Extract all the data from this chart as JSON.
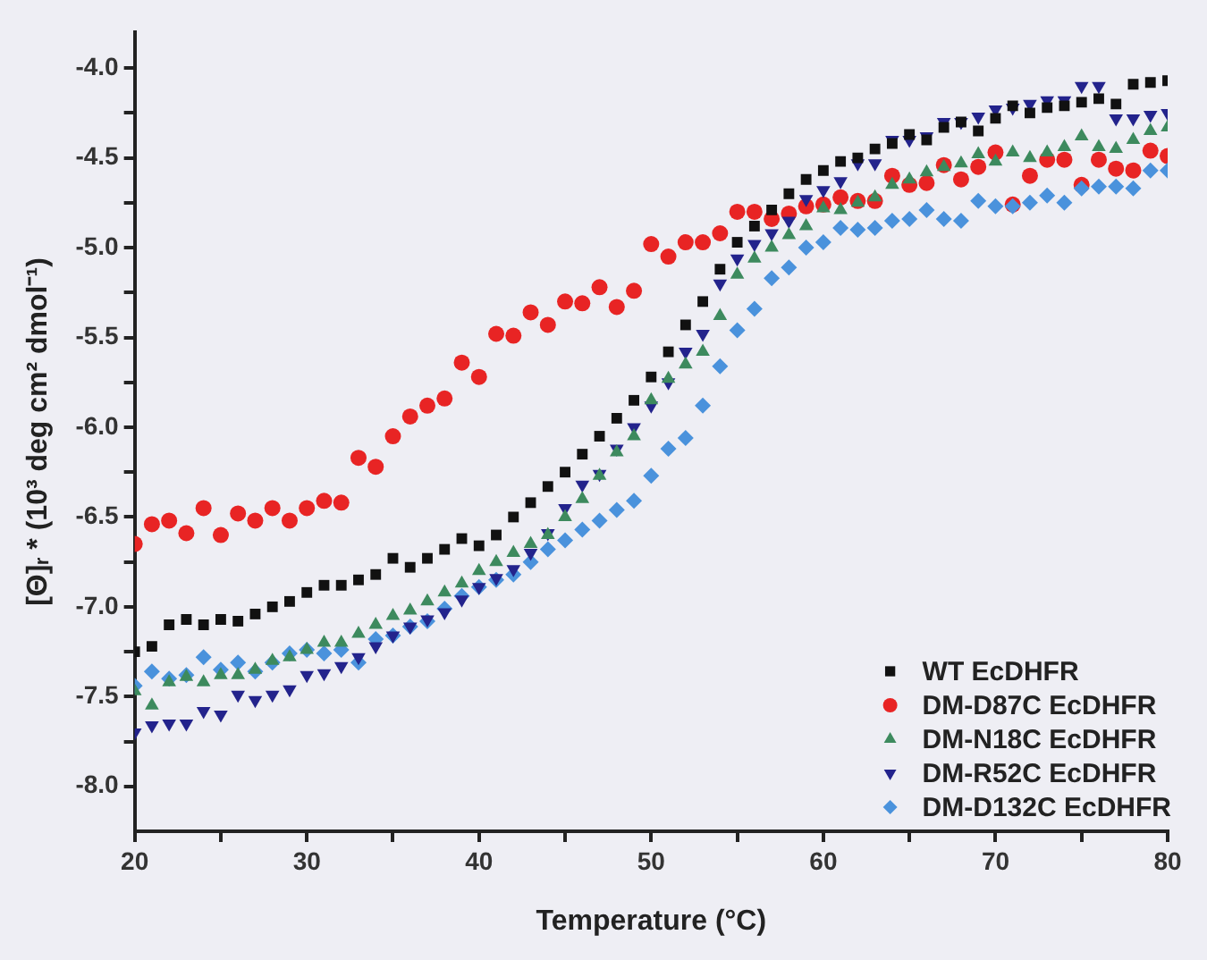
{
  "chart_data": {
    "type": "scatter",
    "xlabel": "Temperature (°C)",
    "ylabel": "[Θ]ᵣ * (10³ deg cm² dmol⁻¹)",
    "x": [
      20,
      21,
      22,
      23,
      24,
      25,
      26,
      27,
      28,
      29,
      30,
      31,
      32,
      33,
      34,
      35,
      36,
      37,
      38,
      39,
      40,
      41,
      42,
      43,
      44,
      45,
      46,
      47,
      48,
      49,
      50,
      51,
      52,
      53,
      54,
      55,
      56,
      57,
      58,
      59,
      60,
      61,
      62,
      63,
      64,
      65,
      66,
      67,
      68,
      69,
      70,
      71,
      72,
      73,
      74,
      75,
      76,
      77,
      78,
      79,
      80
    ],
    "xlim": [
      20,
      80
    ],
    "xticks": [
      20,
      {
        "value": 25,
        "label": null
      },
      30,
      {
        "value": 35,
        "label": null
      },
      40,
      {
        "value": 45,
        "label": null
      },
      50,
      {
        "value": 55,
        "label": null
      },
      60,
      {
        "value": 65,
        "label": null
      },
      70,
      {
        "value": 75,
        "label": null
      },
      80
    ],
    "ylim": [
      -8.25,
      -3.8
    ],
    "yticks": [
      {
        "value": -8,
        "label": "-8.0"
      },
      {
        "value": -7.75,
        "label": null
      },
      {
        "value": -7.5,
        "label": "-7.5"
      },
      {
        "value": -7.25,
        "label": null
      },
      {
        "value": -7,
        "label": "-7.0"
      },
      {
        "value": -6.75,
        "label": null
      },
      {
        "value": -6.5,
        "label": "-6.5"
      },
      {
        "value": -6.25,
        "label": null
      },
      {
        "value": -6,
        "label": "-6.0"
      },
      {
        "value": -5.75,
        "label": null
      },
      {
        "value": -5.5,
        "label": "-5.5"
      },
      {
        "value": -5.25,
        "label": null
      },
      {
        "value": -5,
        "label": "-5.0"
      },
      {
        "value": -4.75,
        "label": null
      },
      {
        "value": -4.5,
        "label": "-4.5"
      },
      {
        "value": -4.25,
        "label": null
      },
      {
        "value": -4,
        "label": "-4.0"
      }
    ],
    "grid": false,
    "legend": "bottom right",
    "series": [
      {
        "name": "WT EcDHFR",
        "color": "#111111",
        "marker": "square",
        "values": [
          -7.25,
          -7.22,
          -7.1,
          -7.07,
          -7.1,
          -7.07,
          -7.08,
          -7.04,
          -7.0,
          -6.97,
          -6.92,
          -6.88,
          -6.88,
          -6.85,
          -6.82,
          -6.73,
          -6.78,
          -6.73,
          -6.68,
          -6.62,
          -6.66,
          -6.6,
          -6.5,
          -6.42,
          -6.33,
          -6.25,
          -6.15,
          -6.05,
          -5.95,
          -5.85,
          -5.72,
          -5.58,
          -5.43,
          -5.3,
          -5.12,
          -4.97,
          -4.88,
          -4.79,
          -4.7,
          -4.62,
          -4.57,
          -4.52,
          -4.5,
          -4.45,
          -4.42,
          -4.37,
          -4.4,
          -4.33,
          -4.3,
          -4.35,
          -4.28,
          -4.21,
          -4.25,
          -4.22,
          -4.21,
          -4.19,
          -4.17,
          -4.2,
          -4.09,
          -4.08,
          -4.07
        ]
      },
      {
        "name": "DM-D87C EcDHFR",
        "color": "#e82424",
        "marker": "circle",
        "values": [
          -6.65,
          -6.54,
          -6.52,
          -6.59,
          -6.45,
          -6.6,
          -6.48,
          -6.52,
          -6.45,
          -6.52,
          -6.45,
          -6.41,
          -6.42,
          -6.17,
          -6.22,
          -6.05,
          -5.94,
          -5.88,
          -5.84,
          -5.64,
          -5.72,
          -5.48,
          -5.49,
          -5.36,
          -5.43,
          -5.3,
          -5.31,
          -5.22,
          -5.33,
          -5.24,
          -4.98,
          -5.05,
          -4.97,
          -4.97,
          -4.92,
          -4.8,
          -4.8,
          -4.84,
          -4.81,
          -4.77,
          -4.76,
          -4.72,
          -4.74,
          -4.74,
          -4.6,
          -4.65,
          -4.64,
          -4.54,
          -4.62,
          -4.55,
          -4.47,
          -4.76,
          -4.6,
          -4.51,
          -4.51,
          -4.65,
          -4.51,
          -4.56,
          -4.57,
          -4.46,
          -4.49
        ]
      },
      {
        "name": "DM-N18C EcDHFR",
        "color": "#3d8a5e",
        "marker": "triangle",
        "values": [
          -7.47,
          -7.55,
          -7.42,
          -7.39,
          -7.42,
          -7.38,
          -7.38,
          -7.35,
          -7.3,
          -7.28,
          -7.24,
          -7.2,
          -7.2,
          -7.15,
          -7.1,
          -7.05,
          -7.02,
          -6.97,
          -6.92,
          -6.87,
          -6.8,
          -6.75,
          -6.7,
          -6.65,
          -6.6,
          -6.5,
          -6.4,
          -6.27,
          -6.14,
          -6.05,
          -5.85,
          -5.73,
          -5.65,
          -5.58,
          -5.38,
          -5.15,
          -5.06,
          -5.0,
          -4.93,
          -4.88,
          -4.78,
          -4.79,
          -4.75,
          -4.72,
          -4.65,
          -4.62,
          -4.58,
          -4.55,
          -4.53,
          -4.48,
          -4.52,
          -4.47,
          -4.5,
          -4.47,
          -4.44,
          -4.38,
          -4.44,
          -4.45,
          -4.4,
          -4.35,
          -4.33
        ]
      },
      {
        "name": "DM-R52C EcDHFR",
        "color": "#23238c",
        "marker": "triangle-down",
        "values": [
          -7.7,
          -7.66,
          -7.65,
          -7.65,
          -7.58,
          -7.6,
          -7.49,
          -7.52,
          -7.49,
          -7.46,
          -7.38,
          -7.37,
          -7.33,
          -7.28,
          -7.22,
          -7.16,
          -7.11,
          -7.07,
          -7.03,
          -6.96,
          -6.89,
          -6.84,
          -6.79,
          -6.7,
          -6.59,
          -6.45,
          -6.32,
          -6.26,
          -6.12,
          -6.0,
          -5.88,
          -5.75,
          -5.58,
          -5.48,
          -5.2,
          -5.06,
          -4.98,
          -4.92,
          -4.85,
          -4.73,
          -4.68,
          -4.63,
          -4.53,
          -4.53,
          -4.4,
          -4.4,
          -4.38,
          -4.3,
          -4.3,
          -4.27,
          -4.23,
          -4.22,
          -4.2,
          -4.18,
          -4.18,
          -4.1,
          -4.1,
          -4.28,
          -4.28,
          -4.26,
          -4.25
        ]
      },
      {
        "name": "DM-D132C EcDHFR",
        "color": "#4a92dc",
        "marker": "diamond",
        "values": [
          -7.44,
          -7.36,
          -7.4,
          -7.38,
          -7.28,
          -7.35,
          -7.31,
          -7.36,
          -7.31,
          -7.26,
          -7.24,
          -7.26,
          -7.24,
          -7.31,
          -7.18,
          -7.16,
          -7.11,
          -7.08,
          -7.01,
          -6.94,
          -6.89,
          -6.85,
          -6.82,
          -6.75,
          -6.68,
          -6.63,
          -6.57,
          -6.52,
          -6.46,
          -6.41,
          -6.27,
          -6.12,
          -6.06,
          -5.88,
          -5.66,
          -5.46,
          -5.34,
          -5.17,
          -5.11,
          -5.0,
          -4.97,
          -4.89,
          -4.9,
          -4.89,
          -4.85,
          -4.84,
          -4.79,
          -4.84,
          -4.85,
          -4.74,
          -4.77,
          -4.77,
          -4.75,
          -4.71,
          -4.75,
          -4.67,
          -4.66,
          -4.66,
          -4.67,
          -4.57,
          -4.57
        ]
      }
    ]
  }
}
